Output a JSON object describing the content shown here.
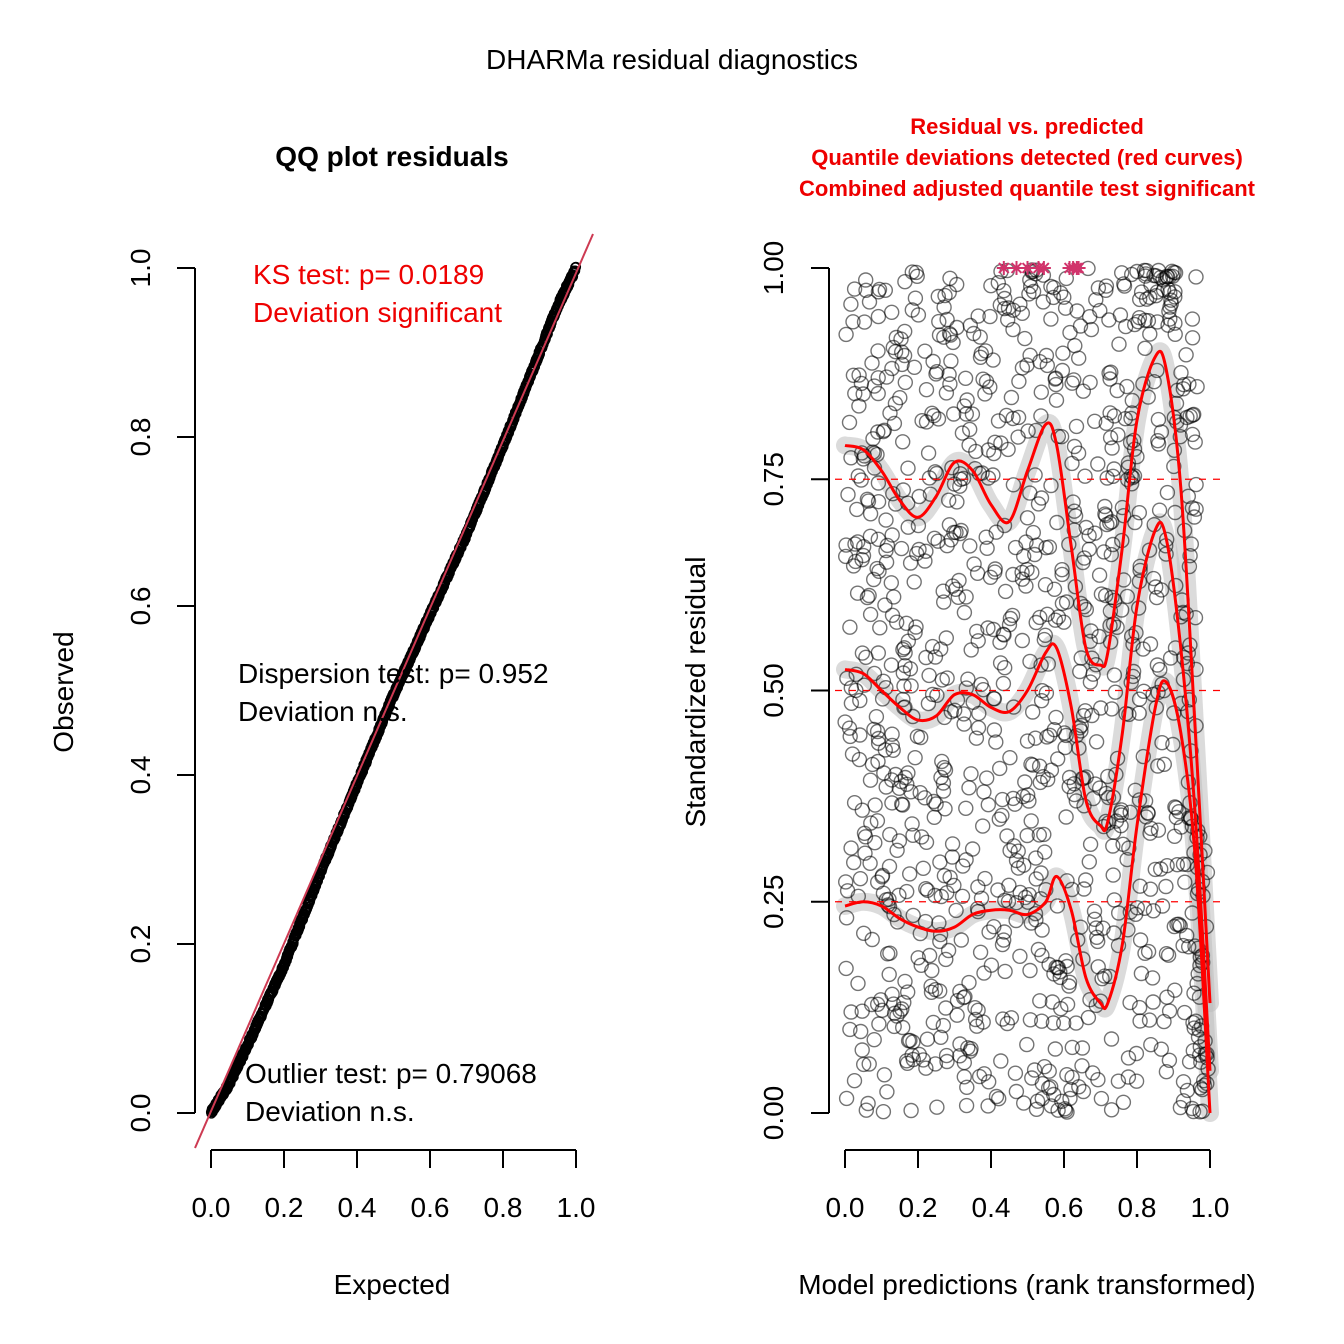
{
  "figure_title": "DHARMa residual diagnostics",
  "colors": {
    "test_red": "#ee0000",
    "curve_red": "#ff0000",
    "identity_line": "#cd3a52",
    "points": "#000000",
    "band": "#bebebe",
    "outlier_star": "#d1336b"
  },
  "chart_data": [
    {
      "type": "scatter",
      "title": "QQ plot residuals",
      "xlabel": "Expected",
      "ylabel": "Observed",
      "xlim": [
        0,
        1
      ],
      "ylim": [
        0,
        1
      ],
      "xticks": [
        "0.0",
        "0.2",
        "0.4",
        "0.6",
        "0.8",
        "1.0"
      ],
      "yticks": [
        "0.0",
        "0.2",
        "0.4",
        "0.6",
        "0.8",
        "1.0"
      ],
      "series": [
        {
          "values_x": [
            0.0,
            0.05,
            0.1,
            0.2,
            0.3,
            0.4,
            0.5,
            0.6,
            0.7,
            0.8,
            0.9,
            0.95,
            1.0
          ],
          "values_y": [
            0.0,
            0.035,
            0.08,
            0.175,
            0.285,
            0.39,
            0.495,
            0.59,
            0.685,
            0.79,
            0.9,
            0.955,
            1.0
          ]
        }
      ],
      "reference_line": "1:1 identity",
      "annotations": {
        "ks": [
          "KS test: p= 0.0189",
          "Deviation  significant"
        ],
        "dispersion": [
          "Dispersion test: p= 0.952",
          "Deviation  n.s."
        ],
        "outlier": [
          "Outlier test: p= 0.79068",
          "Deviation  n.s."
        ]
      }
    },
    {
      "type": "scatter",
      "title_lines": [
        "Residual vs. predicted",
        "Quantile deviations detected (red curves)",
        "Combined adjusted quantile test significant"
      ],
      "xlabel": "Model predictions (rank transformed)",
      "ylabel": "Standardized residual",
      "xlim": [
        0,
        1
      ],
      "ylim": [
        0,
        1
      ],
      "xticks": [
        "0.0",
        "0.2",
        "0.4",
        "0.6",
        "0.8",
        "1.0"
      ],
      "yticks": [
        "0.00",
        "0.25",
        "0.50",
        "0.75",
        "1.00"
      ],
      "reference_lines_y": [
        0.25,
        0.5,
        0.75
      ],
      "point_count": 1200,
      "outliers_x": [
        0.435,
        0.47,
        0.5,
        0.53,
        0.545,
        0.615,
        0.625,
        0.635,
        0.64
      ],
      "quantile_curves": [
        {
          "quantile": 0.25,
          "x": [
            0.0,
            0.05,
            0.1,
            0.15,
            0.2,
            0.25,
            0.3,
            0.35,
            0.4,
            0.45,
            0.5,
            0.55,
            0.58,
            0.62,
            0.66,
            0.7,
            0.72,
            0.76,
            0.8,
            0.85,
            0.88,
            0.92,
            0.96,
            1.0
          ],
          "y": [
            0.245,
            0.25,
            0.245,
            0.23,
            0.22,
            0.215,
            0.22,
            0.235,
            0.24,
            0.24,
            0.235,
            0.25,
            0.28,
            0.24,
            0.16,
            0.13,
            0.13,
            0.2,
            0.34,
            0.48,
            0.51,
            0.45,
            0.3,
            0.0
          ]
        },
        {
          "quantile": 0.5,
          "x": [
            0.0,
            0.05,
            0.1,
            0.15,
            0.2,
            0.25,
            0.3,
            0.35,
            0.4,
            0.45,
            0.5,
            0.55,
            0.58,
            0.62,
            0.66,
            0.7,
            0.72,
            0.76,
            0.8,
            0.85,
            0.88,
            0.92,
            0.96,
            1.0
          ],
          "y": [
            0.525,
            0.52,
            0.5,
            0.48,
            0.465,
            0.47,
            0.495,
            0.495,
            0.48,
            0.475,
            0.5,
            0.545,
            0.55,
            0.48,
            0.37,
            0.34,
            0.345,
            0.45,
            0.6,
            0.69,
            0.68,
            0.55,
            0.35,
            0.05
          ]
        },
        {
          "quantile": 0.75,
          "x": [
            0.0,
            0.05,
            0.1,
            0.15,
            0.2,
            0.25,
            0.3,
            0.35,
            0.4,
            0.45,
            0.5,
            0.55,
            0.58,
            0.62,
            0.66,
            0.7,
            0.72,
            0.76,
            0.8,
            0.85,
            0.88,
            0.92,
            0.96,
            1.0
          ],
          "y": [
            0.79,
            0.785,
            0.76,
            0.725,
            0.705,
            0.73,
            0.77,
            0.76,
            0.72,
            0.7,
            0.76,
            0.815,
            0.79,
            0.67,
            0.55,
            0.53,
            0.545,
            0.67,
            0.82,
            0.895,
            0.88,
            0.74,
            0.45,
            0.13
          ]
        }
      ]
    }
  ]
}
